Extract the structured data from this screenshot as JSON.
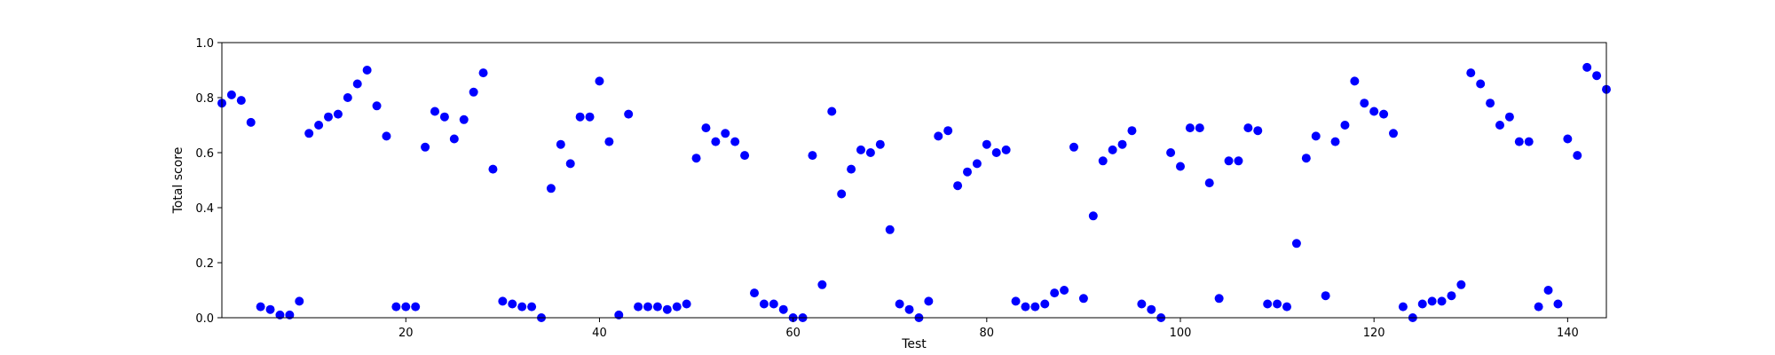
{
  "chart_data": {
    "type": "scatter",
    "title": "",
    "xlabel": "Test",
    "ylabel": "Total score",
    "xlim": [
      1,
      144
    ],
    "ylim": [
      0,
      1.0
    ],
    "xticks": [
      20,
      40,
      60,
      80,
      100,
      120,
      140
    ],
    "xtick_labels": [
      "20",
      "40",
      "60",
      "80",
      "100",
      "120",
      "140"
    ],
    "yticks": [
      0.0,
      0.2,
      0.4,
      0.6,
      0.8,
      1.0
    ],
    "ytick_labels": [
      "0.0",
      "0.2",
      "0.4",
      "0.6",
      "0.8",
      "1.0"
    ],
    "grid": false,
    "marker_color": "#0000ff",
    "series": [
      {
        "x": [
          1,
          2,
          3,
          4,
          5,
          6,
          7,
          8,
          9,
          10,
          11,
          12,
          13,
          14,
          15,
          16,
          17,
          18,
          19,
          20,
          21,
          22,
          23,
          24,
          25,
          26,
          27,
          28,
          29,
          30,
          31,
          32,
          33,
          34,
          35,
          36,
          37,
          38,
          39,
          40,
          41,
          42,
          43,
          44,
          45,
          46,
          47,
          48,
          49,
          50,
          51,
          52,
          53,
          54,
          55,
          56,
          57,
          58,
          59,
          60,
          61,
          62,
          63,
          64,
          65,
          66,
          67,
          68,
          69,
          70,
          71,
          72,
          73,
          74,
          75,
          76,
          77,
          78,
          79,
          80,
          81,
          82,
          83,
          84,
          85,
          86,
          87,
          88,
          89,
          90,
          91,
          92,
          93,
          94,
          95,
          96,
          97,
          98,
          99,
          100,
          101,
          102,
          103,
          104,
          105,
          106,
          107,
          108,
          109,
          110,
          111,
          112,
          113,
          114,
          115,
          116,
          117,
          118,
          119,
          120,
          121,
          122,
          123,
          124,
          125,
          126,
          127,
          128,
          129,
          130,
          131,
          132,
          133,
          134,
          135,
          136,
          137,
          138,
          139,
          140,
          141,
          142,
          143,
          144
        ],
        "y": [
          0.78,
          0.81,
          0.79,
          0.71,
          0.04,
          0.03,
          0.01,
          0.01,
          0.06,
          0.67,
          0.7,
          0.73,
          0.74,
          0.8,
          0.85,
          0.9,
          0.77,
          0.66,
          0.04,
          0.04,
          0.04,
          0.62,
          0.75,
          0.73,
          0.65,
          0.72,
          0.82,
          0.89,
          0.54,
          0.06,
          0.05,
          0.04,
          0.04,
          0.0,
          0.47,
          0.63,
          0.56,
          0.73,
          0.73,
          0.86,
          0.64,
          0.01,
          0.74,
          0.04,
          0.04,
          0.04,
          0.03,
          0.04,
          0.05,
          0.58,
          0.69,
          0.64,
          0.67,
          0.64,
          0.59,
          0.09,
          0.05,
          0.05,
          0.03,
          0.0,
          0.0,
          0.59,
          0.12,
          0.75,
          0.45,
          0.54,
          0.61,
          0.6,
          0.63,
          0.32,
          0.05,
          0.03,
          0.0,
          0.06,
          0.66,
          0.68,
          0.48,
          0.53,
          0.56,
          0.63,
          0.6,
          0.61,
          0.06,
          0.04,
          0.04,
          0.05,
          0.09,
          0.1,
          0.62,
          0.07,
          0.37,
          0.57,
          0.61,
          0.63,
          0.68,
          0.05,
          0.03,
          0.0,
          0.6,
          0.55,
          0.69,
          0.69,
          0.49,
          0.07,
          0.57,
          0.57,
          0.69,
          0.68,
          0.05,
          0.05,
          0.04,
          0.27,
          0.58,
          0.66,
          0.08,
          0.64,
          0.7,
          0.86,
          0.78,
          0.75,
          0.74,
          0.67,
          0.04,
          0.0,
          0.05,
          0.06,
          0.06,
          0.08,
          0.12,
          0.89,
          0.85,
          0.78,
          0.7,
          0.73,
          0.64,
          0.64,
          0.04,
          0.1,
          0.05,
          0.65,
          0.59,
          0.91,
          0.88,
          0.83
        ]
      }
    ]
  }
}
